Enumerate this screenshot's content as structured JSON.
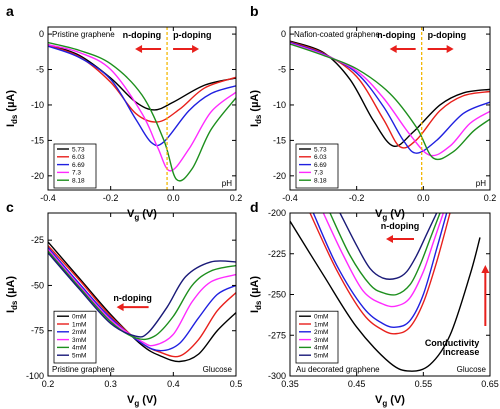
{
  "chart_data": [
    {
      "id": "a",
      "type": "line",
      "panel_label": "a",
      "xlabel": "V",
      "xlabel_sub": "g",
      "xlabel_unit": " (V)",
      "ylabel": "I",
      "ylabel_sub": "ds",
      "ylabel_unit": " (µA)",
      "xlim": [
        -0.4,
        0.2
      ],
      "ylim": [
        -22,
        1
      ],
      "xticks": [
        -0.4,
        -0.2,
        0.0,
        0.2
      ],
      "xticklabels": [
        "-0.4",
        "-0.2",
        "0.0",
        "0.2"
      ],
      "yticks": [
        0,
        -5,
        -10,
        -15,
        -20
      ],
      "yticklabels": [
        "0",
        "-5",
        "-10",
        "-15",
        "-20"
      ],
      "sample_label": "Pristine graphene",
      "corner_label": "pH",
      "legend_position": "bottom-left",
      "annotations": {
        "left": "n-doping",
        "right": "p-doping",
        "dashed_x": -0.02
      },
      "series": [
        {
          "name": "5.73",
          "color": "#000000",
          "x": [
            -0.4,
            -0.3,
            -0.2,
            -0.12,
            -0.06,
            0.0,
            0.1,
            0.2
          ],
          "y": [
            -1.5,
            -3.0,
            -6.2,
            -9.6,
            -10.7,
            -9.6,
            -7.2,
            -6.2
          ]
        },
        {
          "name": "6.03",
          "color": "#e8201c",
          "x": [
            -0.4,
            -0.3,
            -0.2,
            -0.12,
            -0.05,
            0.02,
            0.1,
            0.2
          ],
          "y": [
            -1.6,
            -3.2,
            -6.8,
            -11.2,
            -12.4,
            -10.6,
            -7.6,
            -6.1
          ]
        },
        {
          "name": "6.69",
          "color": "#2020e0",
          "x": [
            -0.4,
            -0.3,
            -0.2,
            -0.12,
            -0.07,
            -0.03,
            0.05,
            0.12,
            0.2
          ],
          "y": [
            -1.7,
            -3.3,
            -6.4,
            -12.0,
            -15.3,
            -15.2,
            -10.8,
            -8.4,
            -7.3
          ]
        },
        {
          "name": "7.3",
          "color": "#ff2aff",
          "x": [
            -0.4,
            -0.3,
            -0.2,
            -0.1,
            -0.05,
            -0.01,
            0.05,
            0.12,
            0.2
          ],
          "y": [
            -1.5,
            -2.6,
            -5.0,
            -11.2,
            -16.0,
            -19.3,
            -16.2,
            -11.0,
            -8.2
          ]
        },
        {
          "name": "8.18",
          "color": "#1d8f1d",
          "x": [
            -0.4,
            -0.3,
            -0.2,
            -0.1,
            -0.03,
            0.01,
            0.06,
            0.12,
            0.2
          ],
          "y": [
            -1.2,
            -2.3,
            -4.2,
            -8.6,
            -15.0,
            -20.5,
            -19.0,
            -13.5,
            -9.0
          ]
        }
      ]
    },
    {
      "id": "b",
      "type": "line",
      "panel_label": "b",
      "xlabel": "V",
      "xlabel_sub": "g",
      "xlabel_unit": " (V)",
      "ylabel": "I",
      "ylabel_sub": "ds",
      "ylabel_unit": " (µA)",
      "xlim": [
        -0.4,
        0.2
      ],
      "ylim": [
        -22,
        1
      ],
      "xticks": [
        -0.4,
        -0.2,
        0.0,
        0.2
      ],
      "xticklabels": [
        "-0.4",
        "-0.2",
        "0.0",
        "0.2"
      ],
      "yticks": [
        0,
        -5,
        -10,
        -15,
        -20
      ],
      "yticklabels": [
        "0",
        "-5",
        "-10",
        "-15",
        "-20"
      ],
      "sample_label": "Nafion-coated graphene",
      "corner_label": "pH",
      "legend_position": "bottom-left",
      "annotations": {
        "left": "n-doping",
        "right": "p-doping",
        "dashed_x": -0.005
      },
      "series": [
        {
          "name": "5.73",
          "color": "#000000",
          "x": [
            -0.4,
            -0.3,
            -0.22,
            -0.15,
            -0.09,
            -0.03,
            0.05,
            0.12,
            0.2
          ],
          "y": [
            -1.0,
            -2.6,
            -6.4,
            -12.2,
            -15.8,
            -13.8,
            -10.0,
            -8.3,
            -7.8
          ]
        },
        {
          "name": "6.03",
          "color": "#e8201c",
          "x": [
            -0.4,
            -0.3,
            -0.2,
            -0.12,
            -0.07,
            -0.02,
            0.05,
            0.12,
            0.2
          ],
          "y": [
            -1.1,
            -2.7,
            -6.0,
            -12.0,
            -15.9,
            -14.9,
            -10.8,
            -8.7,
            -8.1
          ]
        },
        {
          "name": "6.69",
          "color": "#2020e0",
          "x": [
            -0.4,
            -0.3,
            -0.2,
            -0.12,
            -0.06,
            -0.02,
            0.04,
            0.12,
            0.2
          ],
          "y": [
            -1.2,
            -2.8,
            -5.5,
            -10.2,
            -15.0,
            -16.8,
            -15.0,
            -11.2,
            -9.6
          ]
        },
        {
          "name": "7.3",
          "color": "#ff2aff",
          "x": [
            -0.4,
            -0.3,
            -0.2,
            -0.12,
            -0.04,
            0.02,
            0.08,
            0.14,
            0.2
          ],
          "y": [
            -1.3,
            -2.9,
            -5.2,
            -9.0,
            -14.2,
            -17.1,
            -15.8,
            -12.6,
            -10.9
          ]
        },
        {
          "name": "8.18",
          "color": "#1d8f1d",
          "x": [
            -0.4,
            -0.3,
            -0.2,
            -0.1,
            -0.02,
            0.03,
            0.09,
            0.15,
            0.2
          ],
          "y": [
            -1.4,
            -3.0,
            -4.9,
            -8.4,
            -13.2,
            -17.5,
            -16.6,
            -13.7,
            -12.0
          ]
        }
      ]
    },
    {
      "id": "c",
      "type": "line",
      "panel_label": "c",
      "xlabel": "V",
      "xlabel_sub": "g",
      "xlabel_unit": " (V)",
      "ylabel": "I",
      "ylabel_sub": "ds",
      "ylabel_unit": " (µA)",
      "xlim": [
        0.2,
        0.5
      ],
      "ylim": [
        -100,
        -10
      ],
      "xticks": [
        0.2,
        0.3,
        0.4,
        0.5
      ],
      "xticklabels": [
        "0.2",
        "0.3",
        "0.4",
        "0.5"
      ],
      "yticks": [
        -25,
        -50,
        -75,
        -100
      ],
      "yticklabels": [
        "-25",
        "-50",
        "-75",
        "-100"
      ],
      "sample_label": "Pristine graphene",
      "corner_label": "Glucose",
      "legend_position": "top-left",
      "annotations": {
        "left": "n-doping"
      },
      "series": [
        {
          "name": "0mM",
          "color": "#000000",
          "x": [
            0.2,
            0.25,
            0.3,
            0.35,
            0.38,
            0.41,
            0.44,
            0.47,
            0.5
          ],
          "y": [
            -26,
            -46,
            -66,
            -83,
            -89,
            -92,
            -88,
            -75,
            -65
          ]
        },
        {
          "name": "1mM",
          "color": "#e8201c",
          "x": [
            0.2,
            0.25,
            0.3,
            0.35,
            0.38,
            0.41,
            0.44,
            0.47,
            0.5
          ],
          "y": [
            -28,
            -47,
            -67,
            -82,
            -87,
            -89,
            -80,
            -64,
            -54
          ]
        },
        {
          "name": "2mM",
          "color": "#2020e0",
          "x": [
            0.2,
            0.25,
            0.3,
            0.35,
            0.38,
            0.41,
            0.44,
            0.47,
            0.5
          ],
          "y": [
            -29,
            -49,
            -68,
            -82,
            -86,
            -82,
            -68,
            -55,
            -50
          ]
        },
        {
          "name": "3mM",
          "color": "#ff2aff",
          "x": [
            0.2,
            0.25,
            0.3,
            0.35,
            0.37,
            0.4,
            0.43,
            0.46,
            0.5
          ],
          "y": [
            -30,
            -50,
            -69,
            -81,
            -83,
            -77,
            -59,
            -48,
            -44
          ]
        },
        {
          "name": "4mM",
          "color": "#1d8f1d",
          "x": [
            0.2,
            0.25,
            0.3,
            0.34,
            0.37,
            0.4,
            0.43,
            0.46,
            0.5
          ],
          "y": [
            -31,
            -51,
            -70,
            -79,
            -78,
            -67,
            -50,
            -42,
            -39
          ]
        },
        {
          "name": "5mM",
          "color": "#1a1a78",
          "x": [
            0.2,
            0.25,
            0.3,
            0.34,
            0.36,
            0.39,
            0.42,
            0.46,
            0.5
          ],
          "y": [
            -32,
            -52,
            -71,
            -78,
            -76,
            -62,
            -45,
            -37,
            -37
          ]
        }
      ]
    },
    {
      "id": "d",
      "type": "line",
      "panel_label": "d",
      "xlabel": "V",
      "xlabel_sub": "g",
      "xlabel_unit": " (V)",
      "ylabel": "I",
      "ylabel_sub": "ds",
      "ylabel_unit": " (µA)",
      "xlim": [
        0.35,
        0.65
      ],
      "ylim": [
        -300,
        -200
      ],
      "xticks": [
        0.35,
        0.45,
        0.55,
        0.65
      ],
      "xticklabels": [
        "0.35",
        "0.45",
        "0.55",
        "0.65"
      ],
      "yticks": [
        -200,
        -225,
        -250,
        -275,
        -300
      ],
      "yticklabels": [
        "-200",
        "-225",
        "-250",
        "-275",
        "-300"
      ],
      "sample_label": "Au decorated graphene",
      "corner_label": "Glucose",
      "legend_position": "bottom-left",
      "annotations": {
        "left": "n-doping",
        "right": "Conductivity increase"
      },
      "series": [
        {
          "name": "0mM",
          "color": "#000000",
          "x": [
            0.35,
            0.4,
            0.45,
            0.5,
            0.53,
            0.56,
            0.59,
            0.62,
            0.635
          ],
          "y": [
            -205,
            -238,
            -270,
            -292,
            -297,
            -293,
            -275,
            -238,
            -215
          ]
        },
        {
          "name": "1mM",
          "color": "#e8201c",
          "x": [
            0.38,
            0.42,
            0.46,
            0.49,
            0.51,
            0.53,
            0.55,
            0.57,
            0.59
          ],
          "y": [
            -200,
            -235,
            -262,
            -272,
            -274,
            -270,
            -255,
            -230,
            -200
          ]
        },
        {
          "name": "2mM",
          "color": "#2020e0",
          "x": [
            0.385,
            0.42,
            0.46,
            0.49,
            0.51,
            0.53,
            0.55,
            0.57,
            0.585
          ],
          "y": [
            -200,
            -232,
            -258,
            -268,
            -270,
            -266,
            -250,
            -222,
            -200
          ]
        },
        {
          "name": "3mM",
          "color": "#ff2aff",
          "x": [
            0.4,
            0.43,
            0.46,
            0.49,
            0.51,
            0.53,
            0.55,
            0.565,
            0.58
          ],
          "y": [
            -200,
            -226,
            -248,
            -256,
            -257,
            -252,
            -236,
            -218,
            -200
          ]
        },
        {
          "name": "4mM",
          "color": "#1d8f1d",
          "x": [
            0.41,
            0.44,
            0.47,
            0.49,
            0.51,
            0.53,
            0.545,
            0.56,
            0.575
          ],
          "y": [
            -200,
            -226,
            -244,
            -249,
            -250,
            -244,
            -232,
            -216,
            -200
          ]
        },
        {
          "name": "5mM",
          "color": "#1a1a78",
          "x": [
            0.425,
            0.45,
            0.47,
            0.49,
            0.51,
            0.525,
            0.54,
            0.555,
            0.57
          ],
          "y": [
            -200,
            -220,
            -234,
            -240,
            -240,
            -236,
            -226,
            -213,
            -200
          ]
        }
      ]
    }
  ]
}
